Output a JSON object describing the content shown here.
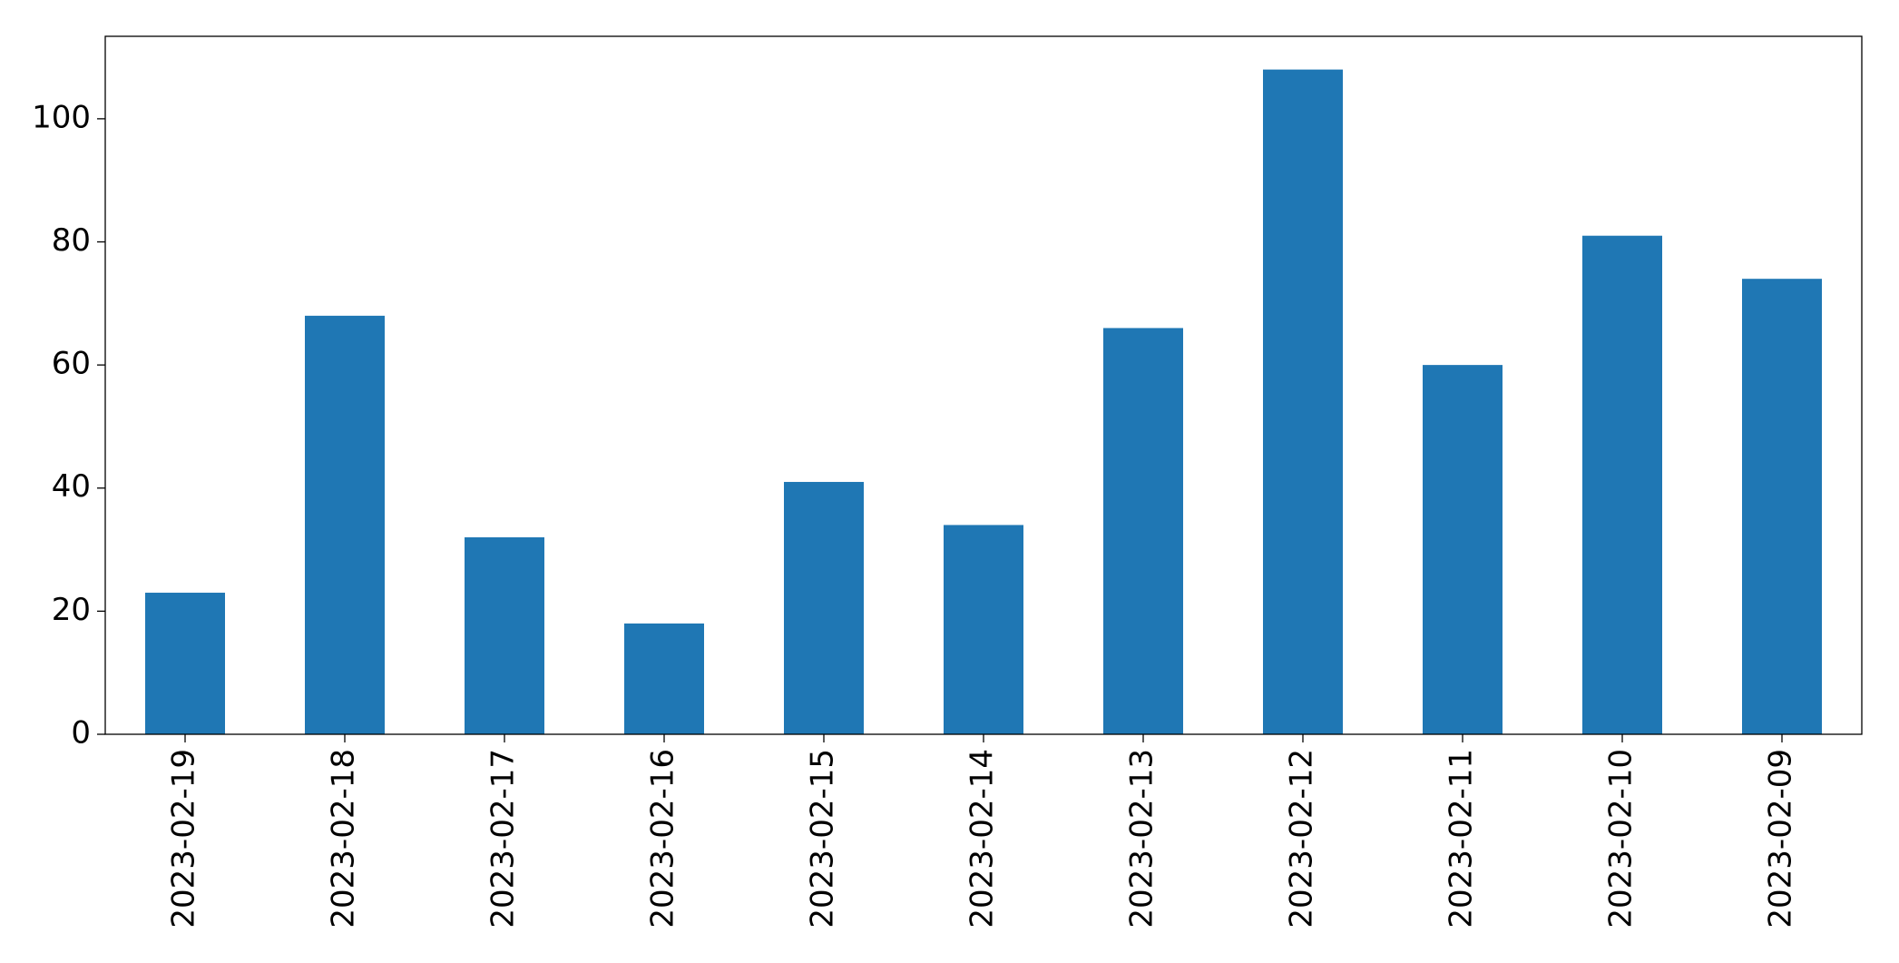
{
  "chart_data": {
    "type": "bar",
    "categories": [
      "2023-02-19",
      "2023-02-18",
      "2023-02-17",
      "2023-02-16",
      "2023-02-15",
      "2023-02-14",
      "2023-02-13",
      "2023-02-12",
      "2023-02-11",
      "2023-02-10",
      "2023-02-09"
    ],
    "values": [
      23,
      68,
      32,
      18,
      41,
      34,
      66,
      108,
      60,
      81,
      74
    ],
    "color": "#1f77b4",
    "ylim": [
      0,
      113.4
    ],
    "yticks": [
      0,
      20,
      40,
      60,
      80,
      100
    ],
    "grid": false
  }
}
